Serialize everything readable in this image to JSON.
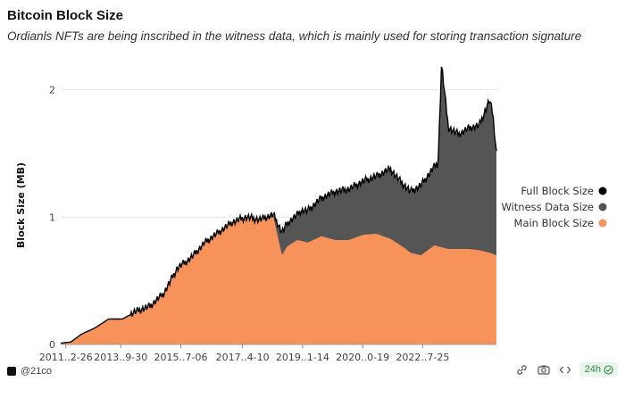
{
  "title": "Bitcoin Block Size",
  "subtitle": "Ordianls NFTs are being inscribed in the witness data, which is mainly used for storing transaction signature",
  "footer": {
    "brand": "@21co",
    "refresh": "24h"
  },
  "colors": {
    "full": "#000000",
    "witness": "#555555",
    "main": "#f7925a",
    "grid": "#e6e6e6"
  },
  "icons": [
    "brand-logo-icon",
    "link-icon",
    "camera-icon",
    "code-icon",
    "check-circle-icon"
  ],
  "chart_data": {
    "type": "area",
    "title": "Bitcoin Block Size",
    "ylabel": "Block Size (MB)",
    "xlabel": "",
    "ylim": [
      0,
      2.2
    ],
    "yticks": [
      0,
      1,
      2
    ],
    "x_tick_labels": [
      "2011..2-26",
      "2013..9-30",
      "2015..7-06",
      "2017..4-10",
      "2019..1-14",
      "2020..0-19",
      "2022..7-25"
    ],
    "x_range": [
      2011.0,
      2023.7
    ],
    "x_tick_positions": [
      2011.15,
      2012.75,
      2014.5,
      2016.3,
      2018.05,
      2019.8,
      2021.55
    ],
    "legend": {
      "placement": "right",
      "entries": [
        "Full Block Size",
        "Witness Data Size",
        "Main Block Size"
      ]
    },
    "series": [
      {
        "name": "Full Block Size",
        "x": [
          2011.0,
          2011.3,
          2011.6,
          2012.0,
          2012.4,
          2012.8,
          2013.2,
          2013.6,
          2014.0,
          2014.4,
          2014.8,
          2015.2,
          2015.6,
          2016.0,
          2016.4,
          2016.8,
          2017.2,
          2017.45,
          2017.6,
          2017.9,
          2018.0,
          2018.2,
          2018.6,
          2019.0,
          2019.4,
          2019.8,
          2020.2,
          2020.6,
          2020.9,
          2021.2,
          2021.5,
          2021.9,
          2022.0,
          2022.1,
          2022.3,
          2022.6,
          2022.9,
          2023.2,
          2023.5,
          2023.6,
          2023.7
        ],
        "values": [
          0.01,
          0.02,
          0.08,
          0.13,
          0.2,
          0.2,
          0.26,
          0.3,
          0.4,
          0.6,
          0.68,
          0.8,
          0.88,
          0.96,
          1.0,
          0.98,
          1.02,
          0.88,
          0.95,
          1.02,
          1.05,
          1.05,
          1.15,
          1.2,
          1.22,
          1.28,
          1.32,
          1.38,
          1.28,
          1.2,
          1.25,
          1.4,
          1.42,
          2.2,
          1.7,
          1.65,
          1.7,
          1.72,
          1.92,
          1.8,
          1.5
        ]
      },
      {
        "name": "Witness Data Size",
        "x": [
          2011.0,
          2016.8,
          2017.3,
          2017.6,
          2017.9,
          2018.2,
          2018.6,
          2019.0,
          2019.4,
          2019.8,
          2020.2,
          2020.6,
          2020.9,
          2021.2,
          2021.5,
          2021.9,
          2022.0,
          2022.1,
          2022.3,
          2022.6,
          2022.9,
          2023.2,
          2023.5,
          2023.6,
          2023.7
        ],
        "values": [
          0.0,
          0.0,
          0.02,
          0.18,
          0.2,
          0.25,
          0.3,
          0.38,
          0.4,
          0.42,
          0.45,
          0.55,
          0.5,
          0.48,
          0.55,
          0.62,
          0.65,
          1.45,
          0.95,
          0.9,
          0.95,
          0.98,
          1.2,
          1.05,
          0.8
        ]
      },
      {
        "name": "Main Block Size",
        "x": [
          2011.0,
          2011.3,
          2011.6,
          2012.0,
          2012.4,
          2012.8,
          2013.2,
          2013.6,
          2014.0,
          2014.4,
          2014.8,
          2015.2,
          2015.6,
          2016.0,
          2016.4,
          2016.8,
          2017.2,
          2017.45,
          2017.6,
          2017.9,
          2018.2,
          2018.6,
          2019.0,
          2019.4,
          2019.8,
          2020.2,
          2020.6,
          2020.9,
          2021.2,
          2021.5,
          2021.9,
          2022.0,
          2022.3,
          2022.6,
          2022.9,
          2023.2,
          2023.5,
          2023.7
        ],
        "values": [
          0.01,
          0.02,
          0.08,
          0.13,
          0.2,
          0.2,
          0.26,
          0.3,
          0.4,
          0.6,
          0.68,
          0.8,
          0.88,
          0.96,
          1.0,
          0.98,
          1.0,
          0.7,
          0.77,
          0.82,
          0.8,
          0.85,
          0.82,
          0.82,
          0.86,
          0.87,
          0.83,
          0.78,
          0.72,
          0.7,
          0.78,
          0.77,
          0.75,
          0.75,
          0.75,
          0.74,
          0.72,
          0.7
        ]
      }
    ]
  }
}
